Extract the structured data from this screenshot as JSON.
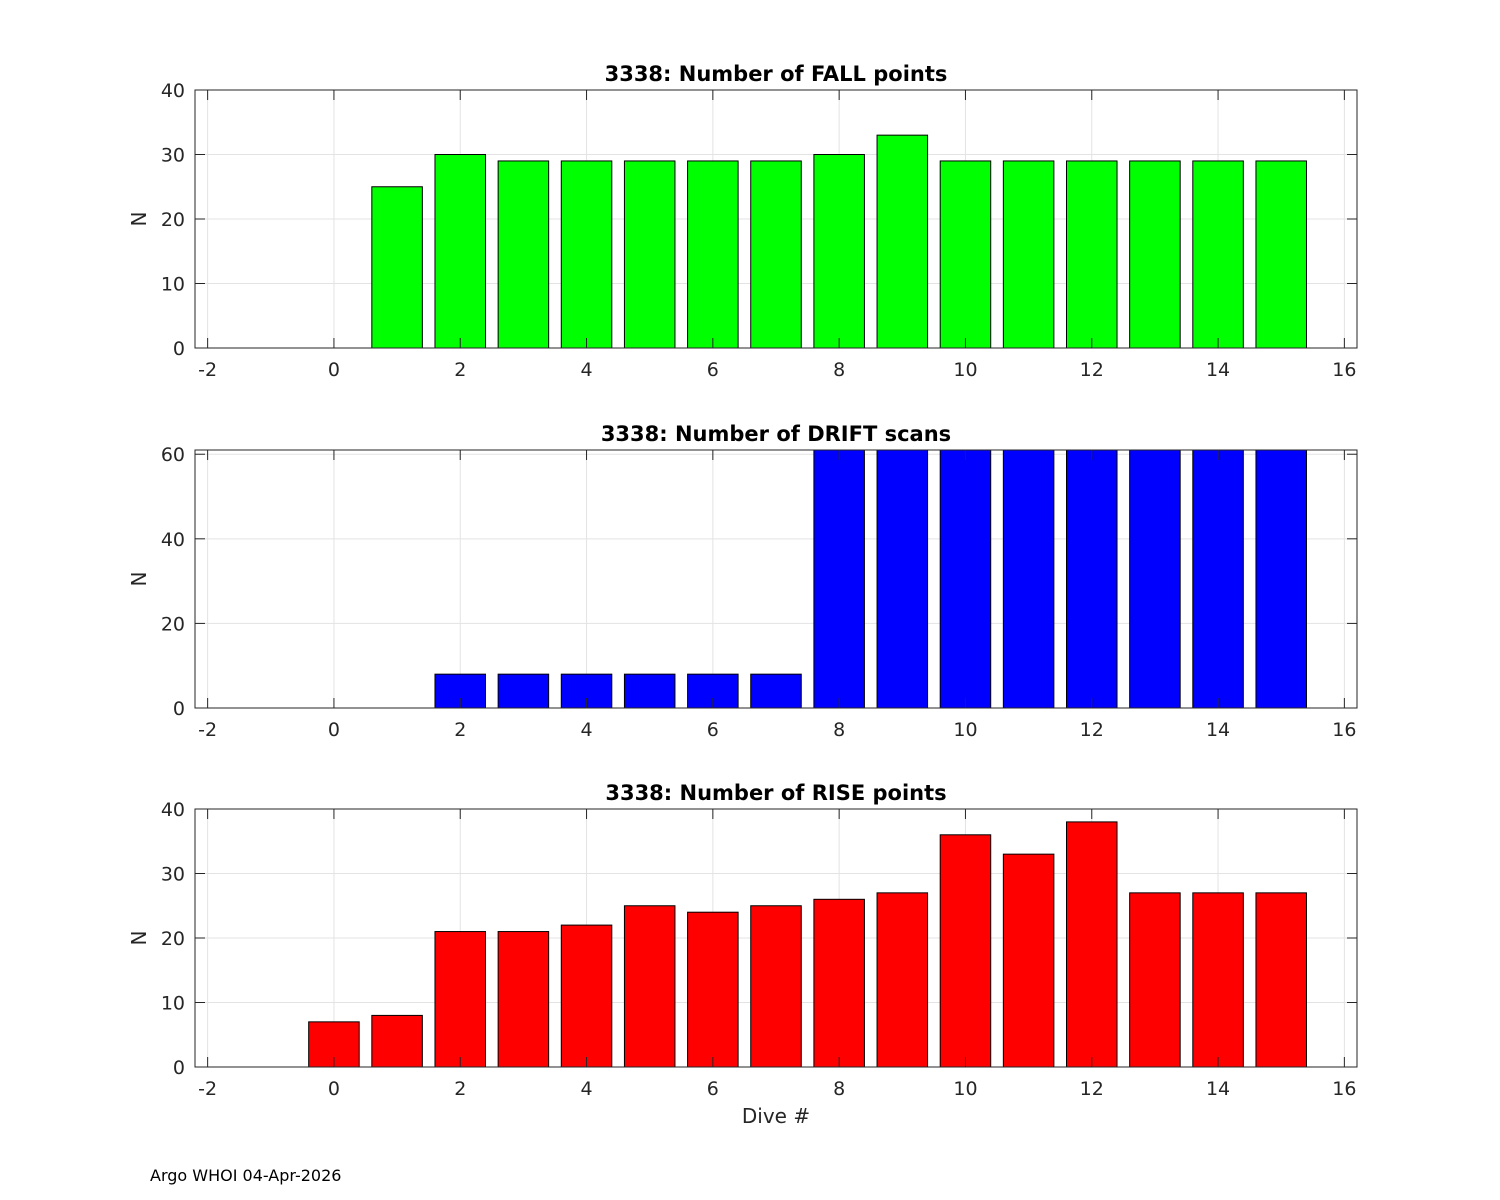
{
  "footer": "Argo WHOI 04-Apr-2026",
  "chart_data": [
    {
      "type": "bar",
      "title": "3338: Number of FALL points",
      "xlabel": "",
      "ylabel": "N",
      "xlim": [
        -2.2,
        16.2
      ],
      "ylim": [
        0,
        40
      ],
      "xticks": [
        -2,
        0,
        2,
        4,
        6,
        8,
        10,
        12,
        14,
        16
      ],
      "yticks": [
        0,
        10,
        20,
        30,
        40
      ],
      "grid": true,
      "color": "#00ff00",
      "x": [
        1,
        2,
        3,
        4,
        5,
        6,
        7,
        8,
        9,
        10,
        11,
        12,
        13,
        14,
        15
      ],
      "values": [
        25,
        30,
        29,
        29,
        29,
        29,
        29,
        30,
        33,
        29,
        29,
        29,
        29,
        29,
        29
      ]
    },
    {
      "type": "bar",
      "title": "3338: Number of DRIFT scans",
      "xlabel": "",
      "ylabel": "N",
      "xlim": [
        -2.2,
        16.2
      ],
      "ylim": [
        0,
        61
      ],
      "xticks": [
        -2,
        0,
        2,
        4,
        6,
        8,
        10,
        12,
        14,
        16
      ],
      "yticks": [
        0,
        20,
        40,
        60
      ],
      "grid": true,
      "color": "#0000ff",
      "x": [
        2,
        3,
        4,
        5,
        6,
        7,
        8,
        9,
        10,
        11,
        12,
        13,
        14,
        15
      ],
      "values": [
        8,
        8,
        8,
        8,
        8,
        8,
        61,
        61,
        61,
        61,
        61,
        61,
        61,
        61
      ]
    },
    {
      "type": "bar",
      "title": "3338: Number of RISE points",
      "xlabel": "Dive #",
      "ylabel": "N",
      "xlim": [
        -2.2,
        16.2
      ],
      "ylim": [
        0,
        40
      ],
      "xticks": [
        -2,
        0,
        2,
        4,
        6,
        8,
        10,
        12,
        14,
        16
      ],
      "yticks": [
        0,
        10,
        20,
        30,
        40
      ],
      "grid": true,
      "color": "#ff0000",
      "x": [
        0,
        1,
        2,
        3,
        4,
        5,
        6,
        7,
        8,
        9,
        10,
        11,
        12,
        13,
        14,
        15
      ],
      "values": [
        7,
        8,
        21,
        21,
        22,
        25,
        24,
        25,
        26,
        27,
        36,
        33,
        38,
        27,
        27,
        27
      ]
    }
  ]
}
